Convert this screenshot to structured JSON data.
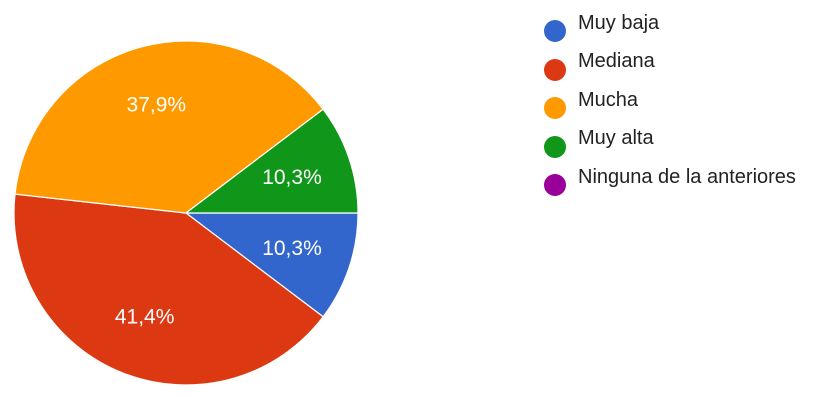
{
  "chart_data": {
    "type": "pie",
    "title": "",
    "slices": [
      {
        "label": "Muy baja",
        "value": 10.3,
        "display": "10,3%",
        "color": "#3366cc"
      },
      {
        "label": "Mediana",
        "value": 41.4,
        "display": "41,4%",
        "color": "#dc3912"
      },
      {
        "label": "Mucha",
        "value": 37.9,
        "display": "37,9%",
        "color": "#ff9900"
      },
      {
        "label": "Muy alta",
        "value": 10.3,
        "display": "10,3%",
        "color": "#109618"
      },
      {
        "label": "Ninguna de la anteriores",
        "value": 0,
        "display": "",
        "color": "#990099"
      }
    ],
    "legend_position": "right"
  },
  "legend": {
    "items": [
      {
        "label": "Muy baja",
        "color": "#3366cc"
      },
      {
        "label": "Mediana",
        "color": "#dc3912"
      },
      {
        "label": "Mucha",
        "color": "#ff9900"
      },
      {
        "label": "Muy alta",
        "color": "#109618"
      },
      {
        "label": "Ninguna de la anteriores",
        "color": "#990099"
      }
    ]
  }
}
